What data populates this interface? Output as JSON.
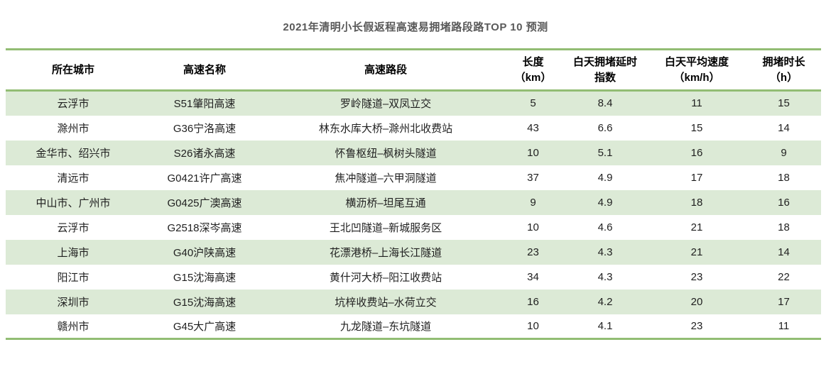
{
  "page": {
    "title": "2021年清明小长假返程高速易拥堵路段路TOP 10 预测"
  },
  "colors": {
    "stripe_green": "#dcead6",
    "border_green": "#92bd74",
    "title_text": "#595959",
    "cell_text": "#1f1f1f"
  },
  "chart_data": {
    "type": "table",
    "title": "2021年清明小长假返程高速易拥堵路段路TOP 10 预测",
    "columns": [
      "所在城市",
      "高速名称",
      "高速路段",
      "长度\n（km）",
      "白天拥堵延时\n指数",
      "白天平均速度\n（km/h）",
      "拥堵时长\n（h）"
    ],
    "rows": [
      [
        "云浮市",
        "S51肇阳高速",
        "罗岭隧道–双凤立交",
        "5",
        "8.4",
        "11",
        "15"
      ],
      [
        "滁州市",
        "G36宁洛高速",
        "林东水库大桥–滁州北收费站",
        "43",
        "6.6",
        "15",
        "14"
      ],
      [
        "金华市、绍兴市",
        "S26诸永高速",
        "怀鲁枢纽–枫树头隧道",
        "10",
        "5.1",
        "16",
        "9"
      ],
      [
        "清远市",
        "G0421许广高速",
        "焦冲隧道–六甲洞隧道",
        "37",
        "4.9",
        "17",
        "18"
      ],
      [
        "中山市、广州市",
        "G0425广澳高速",
        "横沥桥–坦尾互通",
        "9",
        "4.9",
        "18",
        "16"
      ],
      [
        "云浮市",
        "G2518深岑高速",
        "王北凹隧道–新城服务区",
        "10",
        "4.6",
        "21",
        "18"
      ],
      [
        "上海市",
        "G40沪陕高速",
        "花漂港桥–上海长江隧道",
        "23",
        "4.3",
        "21",
        "14"
      ],
      [
        "阳江市",
        "G15沈海高速",
        "黄什河大桥–阳江收费站",
        "34",
        "4.3",
        "23",
        "22"
      ],
      [
        "深圳市",
        "G15沈海高速",
        "坑梓收费站–水荷立交",
        "16",
        "4.2",
        "20",
        "17"
      ],
      [
        "赣州市",
        "G45大广高速",
        "九龙隧道–东坑隧道",
        "10",
        "4.1",
        "23",
        "11"
      ]
    ]
  }
}
